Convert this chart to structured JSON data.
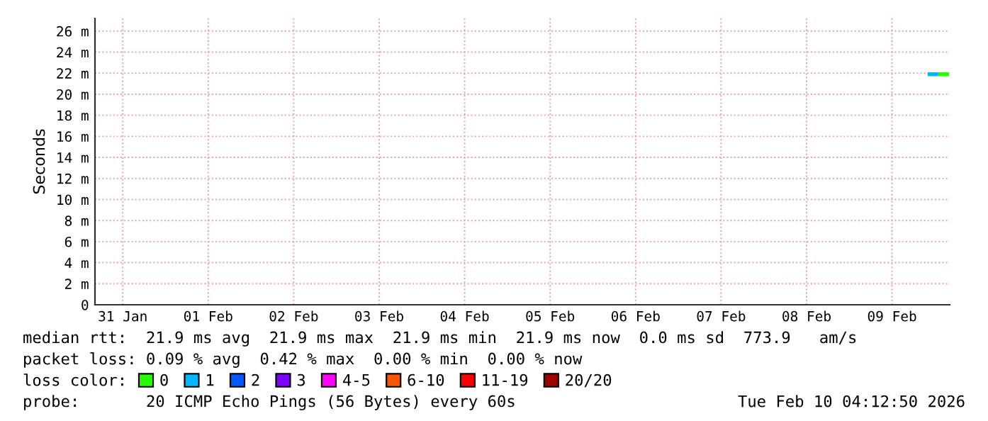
{
  "chart_data": {
    "type": "line",
    "ylabel": "Seconds",
    "xlim": [
      "2026-01-31T04:12",
      "2026-02-10T04:12"
    ],
    "xticks": [
      {
        "value": "2026-01-31T12:00",
        "label": "31 Jan"
      },
      {
        "value": "2026-02-01T12:00",
        "label": "01 Feb"
      },
      {
        "value": "2026-02-02T12:00",
        "label": "02 Feb"
      },
      {
        "value": "2026-02-03T12:00",
        "label": "03 Feb"
      },
      {
        "value": "2026-02-04T12:00",
        "label": "04 Feb"
      },
      {
        "value": "2026-02-05T12:00",
        "label": "05 Feb"
      },
      {
        "value": "2026-02-06T12:00",
        "label": "06 Feb"
      },
      {
        "value": "2026-02-07T12:00",
        "label": "07 Feb"
      },
      {
        "value": "2026-02-08T12:00",
        "label": "08 Feb"
      },
      {
        "value": "2026-02-09T12:00",
        "label": "09 Feb"
      }
    ],
    "ylim": [
      0,
      27.2
    ],
    "yticks": [
      0,
      {
        "value": 2,
        "label": "2 m"
      },
      {
        "value": 4,
        "label": "4 m"
      },
      {
        "value": 6,
        "label": "6 m"
      },
      {
        "value": 8,
        "label": "8 m"
      },
      {
        "value": 10,
        "label": "10 m"
      },
      {
        "value": 12,
        "label": "12 m"
      },
      {
        "value": 14,
        "label": "14 m"
      },
      {
        "value": 16,
        "label": "16 m"
      },
      {
        "value": 18,
        "label": "18 m"
      },
      {
        "value": 20,
        "label": "20 m"
      },
      {
        "value": 22,
        "label": "22 m"
      },
      {
        "value": 24,
        "label": "24 m"
      },
      {
        "value": 26,
        "label": "26 m"
      }
    ],
    "grid": true,
    "legend": "bottom",
    "series": [
      {
        "name": "0",
        "color": "#26ff00",
        "x": [
          "2026-02-10T01:00",
          "2026-02-10T04:00"
        ],
        "values": [
          21.9,
          21.9
        ]
      },
      {
        "name": "1",
        "color": "#00b8ff",
        "x": [
          "2026-02-09T22:00",
          "2026-02-10T01:00"
        ],
        "values": [
          21.9,
          21.9
        ]
      },
      {
        "name": "2",
        "color": "#0059ff"
      },
      {
        "name": "3",
        "color": "#7e00ff"
      },
      {
        "name": "4-5",
        "color": "#ff00ff"
      },
      {
        "name": "6-10",
        "color": "#ff5500"
      },
      {
        "name": "11-19",
        "color": "#ff0000"
      },
      {
        "name": "20/20",
        "color": "#a10000"
      }
    ],
    "annotations": [
      "median rtt:  21.9 ms avg  21.9 ms max  21.9 ms min  21.9 ms now  0.0 ms sd  773.9   am/s",
      "packet loss: 0.09 % avg  0.42 % max  0.00 % min  0.00 % now",
      "loss color:",
      "probe:       20 ICMP Echo Pings (56 Bytes) every 60s",
      "Tue Feb 10 04:12:50 2026"
    ]
  }
}
